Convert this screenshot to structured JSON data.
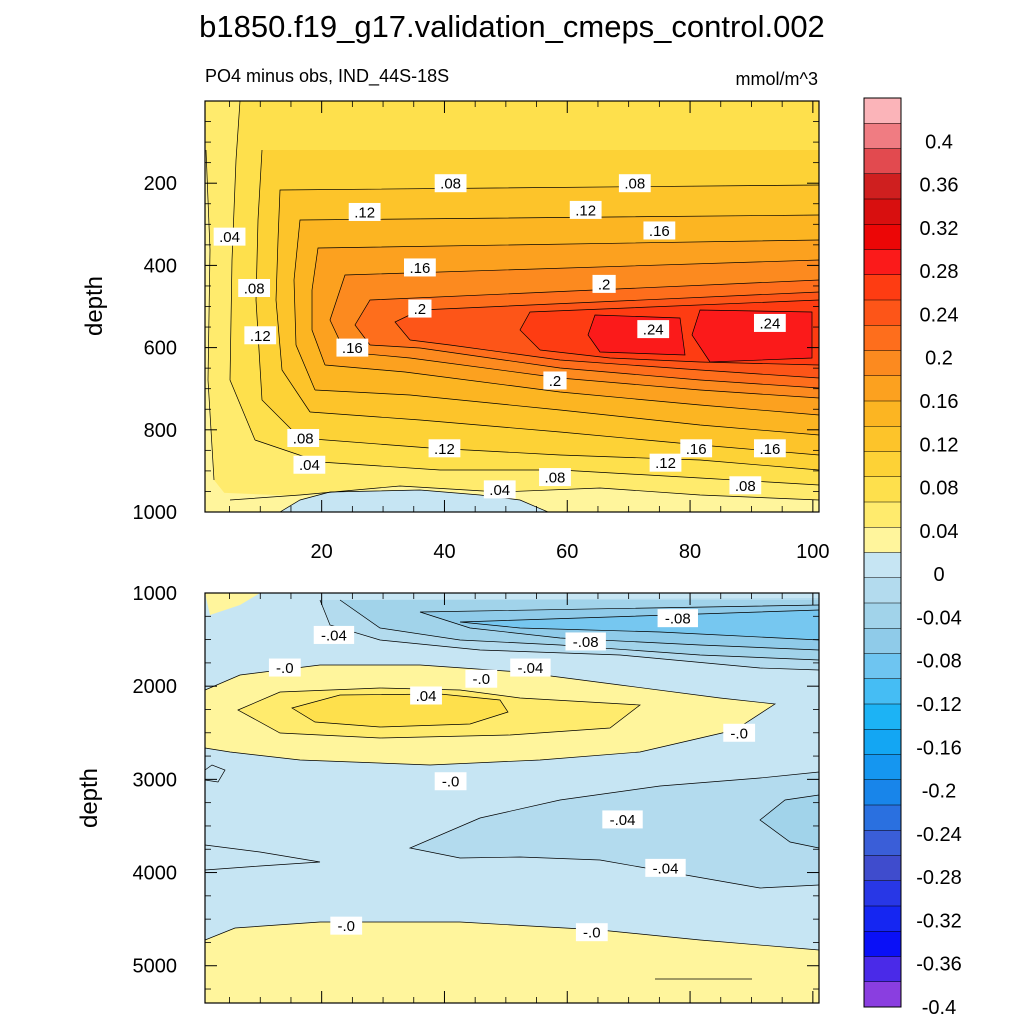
{
  "title": "b1850.f19_g17.validation_cmeps_control.002",
  "subtitle_left": "PO4 minus obs, IND_44S-18S",
  "subtitle_right": "mmol/m^3",
  "colorbar": {
    "labels": [
      "0.4",
      "0.36",
      "0.32",
      "0.28",
      "0.24",
      "0.2",
      "0.16",
      "0.12",
      "0.08",
      "0.04",
      "0",
      "-0.04",
      "-0.08",
      "-0.12",
      "-0.16",
      "-0.2",
      "-0.24",
      "-0.28",
      "-0.32",
      "-0.36",
      "-0.4"
    ],
    "colors": [
      "#fbb4b9",
      "#f07c82",
      "#e24a4f",
      "#cf1f1f",
      "#d80f0f",
      "#ec0606",
      "#fb1a1a",
      "#fe3c12",
      "#fd5518",
      "#fe6e1c",
      "#fc8a1f",
      "#fca11f",
      "#fcb522",
      "#fdc42a",
      "#fdd236",
      "#fee04c",
      "#ffeb6d",
      "#fff59c",
      "#c6e5f3",
      "#b3dbee",
      "#a1d3ea",
      "#8fcbe9",
      "#6ec5f1",
      "#45bdf4",
      "#1cb3f5",
      "#13a6f3",
      "#1596f0",
      "#1885ea",
      "#2a70e0",
      "#3a5ed8",
      "#3f4ccd",
      "#2837e6",
      "#1526f2",
      "#0a10f7",
      "#4a2ae8",
      "#8a3ee0"
    ]
  },
  "chart_data": [
    {
      "type": "contour",
      "panel": "upper",
      "title": "PO4 minus obs, IND_44S-18S",
      "units": "mmol/m^3",
      "ylabel": "depth",
      "xlim": [
        1,
        101
      ],
      "ylim": [
        1000,
        0
      ],
      "xticks": [
        20,
        40,
        60,
        80,
        100
      ],
      "yticks": [
        200,
        400,
        600,
        800,
        1000
      ],
      "contour_interval": 0.02,
      "features": {
        "max_core_depth": 570,
        "max_value": 0.26,
        "near_bottom_min": -0.02
      },
      "contour_labels": [
        {
          "text": ".04",
          "x": 5,
          "y": 330
        },
        {
          "text": ".08",
          "x": 41,
          "y": 200
        },
        {
          "text": ".08",
          "x": 71,
          "y": 200
        },
        {
          "text": ".12",
          "x": 27,
          "y": 270
        },
        {
          "text": ".12",
          "x": 63,
          "y": 265
        },
        {
          "text": ".16",
          "x": 75,
          "y": 315
        },
        {
          "text": ".16",
          "x": 36,
          "y": 405
        },
        {
          "text": ".2",
          "x": 66,
          "y": 445
        },
        {
          "text": ".2",
          "x": 36,
          "y": 505
        },
        {
          "text": ".08",
          "x": 9,
          "y": 455
        },
        {
          "text": ".12",
          "x": 10,
          "y": 570
        },
        {
          "text": ".24",
          "x": 74,
          "y": 555
        },
        {
          "text": ".24",
          "x": 93,
          "y": 540
        },
        {
          "text": ".16",
          "x": 25,
          "y": 600
        },
        {
          "text": ".2",
          "x": 58,
          "y": 680
        },
        {
          "text": ".08",
          "x": 17,
          "y": 820
        },
        {
          "text": ".12",
          "x": 40,
          "y": 845
        },
        {
          "text": ".16",
          "x": 81,
          "y": 845
        },
        {
          "text": ".16",
          "x": 93,
          "y": 845
        },
        {
          "text": ".12",
          "x": 76,
          "y": 880
        },
        {
          "text": ".04",
          "x": 18,
          "y": 885
        },
        {
          "text": ".08",
          "x": 58,
          "y": 915
        },
        {
          "text": ".08",
          "x": 89,
          "y": 935
        },
        {
          "text": ".04",
          "x": 49,
          "y": 945
        }
      ]
    },
    {
      "type": "contour",
      "panel": "lower",
      "ylabel": "depth",
      "xlim": [
        1,
        101
      ],
      "ylim": [
        5400,
        1000
      ],
      "xticks": [
        20,
        40,
        60,
        80,
        100
      ],
      "yticks": [
        1000,
        2000,
        3000,
        4000,
        5000
      ],
      "contour_interval": 0.02,
      "contour_labels": [
        {
          "text": "-.04",
          "x": 22,
          "y": 1450
        },
        {
          "text": "-.08",
          "x": 78,
          "y": 1270
        },
        {
          "text": "-.08",
          "x": 63,
          "y": 1520
        },
        {
          "text": "-.04",
          "x": 54,
          "y": 1800
        },
        {
          "text": "-.0",
          "x": 14,
          "y": 1800
        },
        {
          "text": "-.0",
          "x": 46,
          "y": 1920
        },
        {
          "text": ".04",
          "x": 37,
          "y": 2100
        },
        {
          "text": "-.0",
          "x": 88,
          "y": 2500
        },
        {
          "text": "-.0",
          "x": 41,
          "y": 3020
        },
        {
          "text": "-.04",
          "x": 69,
          "y": 3430
        },
        {
          "text": "-.04",
          "x": 76,
          "y": 3950
        },
        {
          "text": "-.0",
          "x": 24,
          "y": 4570
        },
        {
          "text": "-.0",
          "x": 64,
          "y": 4640
        }
      ]
    }
  ]
}
